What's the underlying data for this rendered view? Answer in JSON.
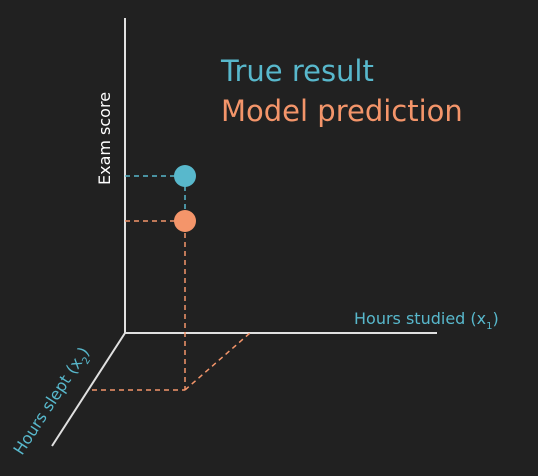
{
  "colors": {
    "background": "#212121",
    "axis": "#e0e0e0",
    "true_result": "#58b8cc",
    "model_prediction": "#f4956a"
  },
  "legend": {
    "true_result": "True result",
    "model_prediction": "Model prediction"
  },
  "axes": {
    "y_label": "Exam score",
    "x1_label_main": "Hours studied (x",
    "x1_subscript": "1",
    "x1_close": ")",
    "x2_label_main": "Hours slept (x",
    "x2_subscript": "2",
    "x2_close": ")"
  },
  "points": [
    {
      "name": "true-result",
      "color_key": "true_result"
    },
    {
      "name": "model-prediction",
      "color_key": "model_prediction"
    }
  ]
}
